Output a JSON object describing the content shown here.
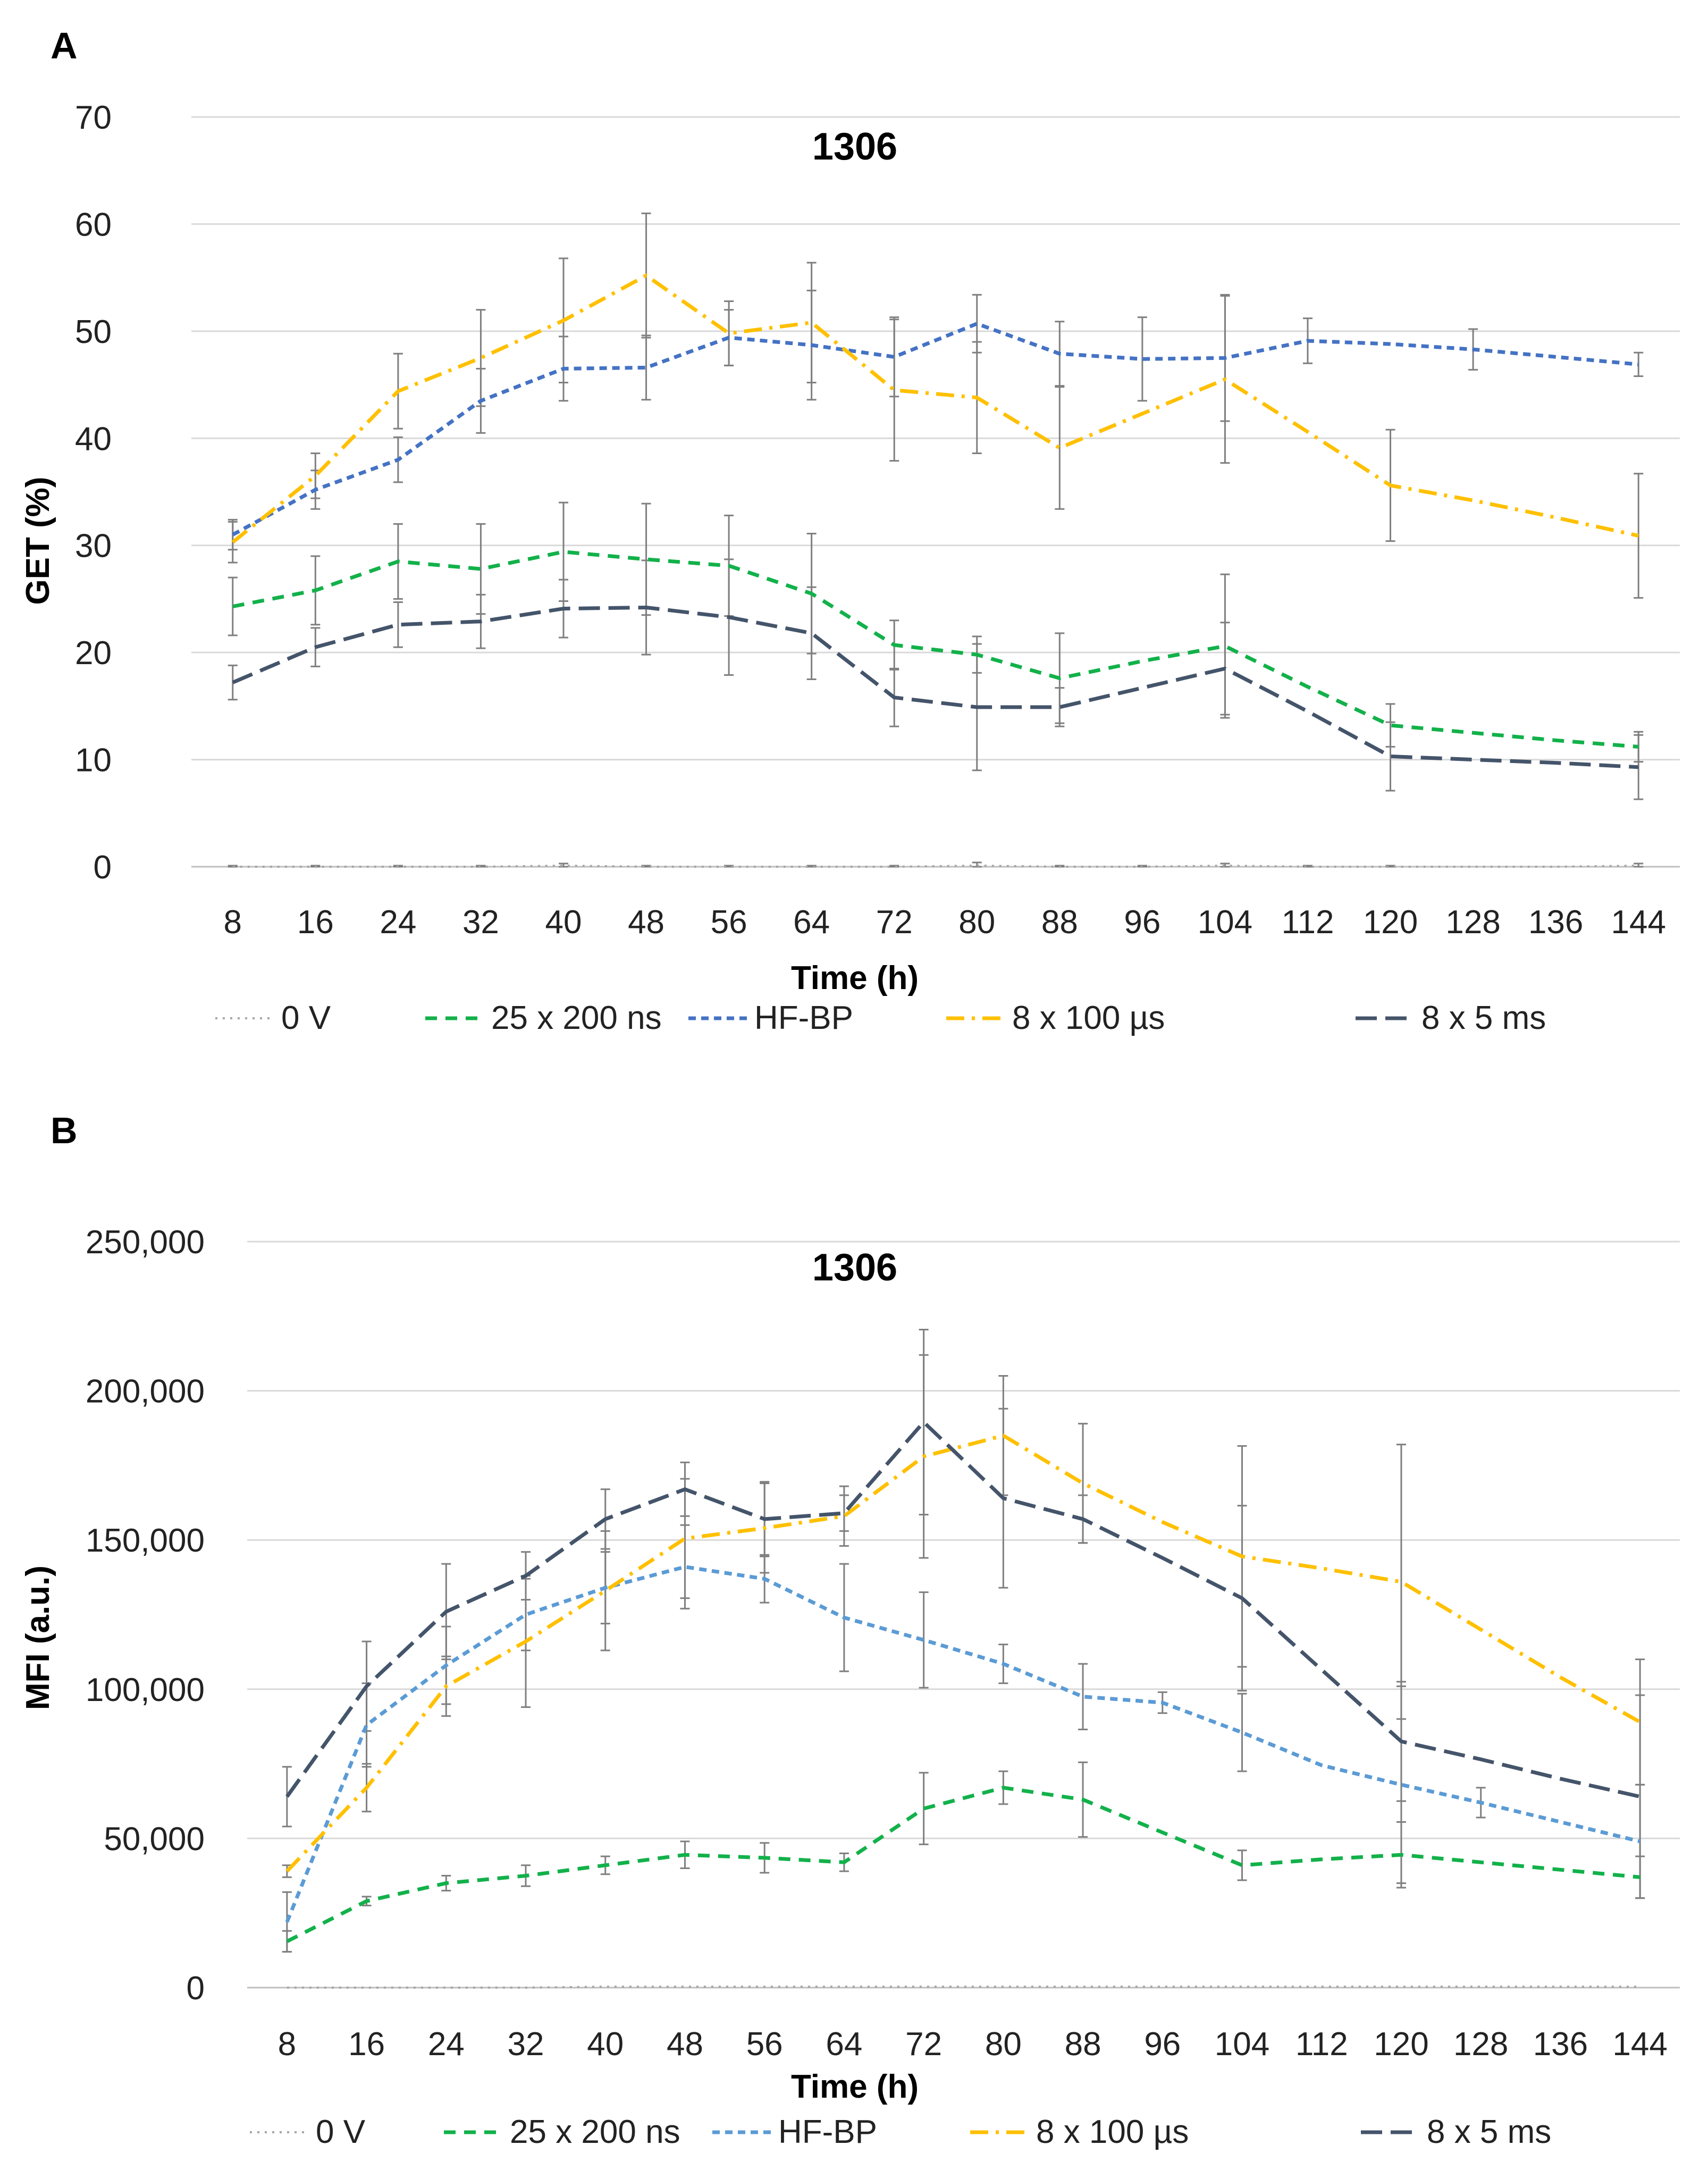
{
  "figure": {
    "panels": [
      "A",
      "B"
    ]
  },
  "series_styles": [
    {
      "name": "0 V",
      "color": "#a6a6a6",
      "dash": "dot"
    },
    {
      "name": "25 x 200 ns",
      "color": "#12b14a",
      "dash": "dash"
    },
    {
      "name": "HF-BP",
      "color": "#4472c4",
      "dash": "sysdash"
    },
    {
      "name": "8 x 100 µs",
      "color": "#ffc000",
      "dash": "dashdot"
    },
    {
      "name": "8 x 5 ms",
      "color": "#44546a",
      "dash": "longdash"
    }
  ],
  "chart_data": [
    {
      "panel": "A",
      "type": "line",
      "title": "1306",
      "xlabel": "Time (h)",
      "ylabel": "GET (%)",
      "ylim": [
        0,
        70
      ],
      "yticks": [
        0,
        10,
        20,
        30,
        40,
        50,
        60,
        70
      ],
      "ytick_labels": [
        "0",
        "10",
        "20",
        "30",
        "40",
        "50",
        "60",
        "70"
      ],
      "grid": true,
      "legend_position": "bottom",
      "categories": [
        "8",
        "16",
        "24",
        "32",
        "40",
        "48",
        "56",
        "64",
        "72",
        "80",
        "88",
        "96",
        "104",
        "112",
        "120",
        "128",
        "136",
        "144"
      ],
      "series": [
        {
          "name": "0 V",
          "color": "#a6a6a6",
          "values": [
            0,
            0,
            0,
            0,
            0.1,
            0,
            0,
            0,
            0,
            0.1,
            0,
            0,
            0.1,
            0,
            0,
            0,
            0,
            0.1
          ],
          "errors": [
            0.1,
            0.1,
            0.1,
            0.1,
            0.2,
            0.1,
            0.1,
            0.1,
            0.1,
            0.3,
            0.1,
            0.1,
            0.2,
            0.1,
            0.1,
            null,
            null,
            0.2
          ]
        },
        {
          "name": "25 x 200 ns",
          "color": "#12b14a",
          "values": [
            24.3,
            25.8,
            28.5,
            27.8,
            29.4,
            28.7,
            28.1,
            25.5,
            20.7,
            19.8,
            17.6,
            19.2,
            20.6,
            16.8,
            13.2,
            12.5,
            11.8,
            11.2
          ],
          "errors": [
            2.7,
            3.2,
            3.5,
            4.2,
            4.6,
            5.2,
            4.7,
            5.6,
            2.3,
            1.7,
            4.2,
            null,
            6.7,
            null,
            2.0,
            null,
            null,
            1.4
          ]
        },
        {
          "name": "HF-BP",
          "color": "#4472c4",
          "values": [
            31.0,
            35.2,
            38.0,
            43.5,
            46.5,
            46.6,
            49.4,
            48.7,
            47.6,
            50.7,
            47.9,
            47.4,
            47.5,
            49.1,
            48.8,
            48.3,
            47.6,
            46.9
          ],
          "errors": [
            1.4,
            1.8,
            2.1,
            3.0,
            3.0,
            3.0,
            2.6,
            5.1,
            3.7,
            2.7,
            3.0,
            3.9,
            5.9,
            2.1,
            null,
            1.9,
            null,
            1.1
          ]
        },
        {
          "name": "8 x 100 µs",
          "color": "#ffc000",
          "values": [
            30.3,
            36.5,
            44.4,
            47.5,
            51.0,
            55.2,
            49.8,
            50.8,
            44.5,
            43.8,
            39.1,
            42.3,
            45.5,
            40.6,
            35.6,
            34.2,
            32.6,
            30.9
          ],
          "errors": [
            1.9,
            2.1,
            3.5,
            4.5,
            5.8,
            5.8,
            3.0,
            5.6,
            6.6,
            5.2,
            5.7,
            null,
            7.8,
            null,
            5.2,
            null,
            null,
            5.8
          ]
        },
        {
          "name": "8 x 5 ms",
          "color": "#44546a",
          "values": [
            17.2,
            20.5,
            22.6,
            22.9,
            24.1,
            24.2,
            23.3,
            21.8,
            15.8,
            14.9,
            14.9,
            16.7,
            18.5,
            14.5,
            10.3,
            10.0,
            9.7,
            9.3
          ],
          "errors": [
            1.6,
            1.8,
            2.1,
            2.5,
            2.7,
            4.4,
            5.4,
            4.3,
            2.7,
            5.9,
            1.8,
            null,
            4.3,
            null,
            3.2,
            null,
            null,
            3.0
          ]
        }
      ]
    },
    {
      "panel": "B",
      "type": "line",
      "title": "1306",
      "xlabel": "Time (h)",
      "ylabel": "MFI (a.u.)",
      "ylim": [
        0,
        250000
      ],
      "yticks": [
        0,
        50000,
        100000,
        150000,
        200000,
        250000
      ],
      "ytick_labels": [
        "0",
        "50,000",
        "100,000",
        "150,000",
        "200,000",
        "250,000"
      ],
      "grid": true,
      "legend_position": "bottom",
      "categories": [
        "8",
        "16",
        "24",
        "32",
        "40",
        "48",
        "56",
        "64",
        "72",
        "80",
        "88",
        "96",
        "104",
        "112",
        "120",
        "128",
        "136",
        "144"
      ],
      "series": [
        {
          "name": "0 V",
          "color": "#a6a6a6",
          "values": [
            0,
            0,
            0,
            0,
            300,
            300,
            300,
            300,
            300,
            300,
            300,
            300,
            300,
            300,
            300,
            300,
            300,
            300
          ],
          "errors": [
            null,
            null,
            null,
            null,
            null,
            null,
            null,
            null,
            null,
            null,
            null,
            null,
            null,
            null,
            null,
            null,
            null,
            null
          ]
        },
        {
          "name": "25 x 200 ns",
          "color": "#12b14a",
          "values": [
            15500,
            29000,
            35000,
            37500,
            41000,
            44500,
            43500,
            42000,
            60000,
            67000,
            63000,
            52000,
            41000,
            43000,
            44500,
            42000,
            39500,
            37000
          ],
          "errors": [
            3500,
            1500,
            2500,
            3500,
            3000,
            4500,
            5000,
            3000,
            12000,
            5500,
            12500,
            null,
            5000,
            null,
            11000,
            null,
            null,
            7000
          ]
        },
        {
          "name": "HF-BP",
          "color": "#5b9bd5",
          "values": [
            22000,
            88000,
            108000,
            125000,
            134000,
            141000,
            137000,
            124000,
            116500,
            108500,
            97500,
            95500,
            85500,
            74500,
            68000,
            62000,
            55500,
            49000
          ],
          "errors": [
            10000,
            14000,
            13000,
            12000,
            12000,
            14000,
            8000,
            18000,
            16000,
            6500,
            11000,
            3500,
            13000,
            null,
            33000,
            5000,
            null,
            19000
          ]
        },
        {
          "name": "8 x 100 µs",
          "color": "#ffc000",
          "values": [
            39000,
            67000,
            101000,
            116000,
            133000,
            150500,
            154000,
            158000,
            178000,
            185000,
            169000,
            156000,
            144500,
            140500,
            136000,
            120000,
            104000,
            89000
          ],
          "errors": [
            2000,
            8000,
            10000,
            22000,
            20000,
            20000,
            15000,
            10000,
            34000,
            20000,
            20000,
            null,
            37000,
            null,
            46000,
            null,
            null,
            21000
          ]
        },
        {
          "name": "8 x 5 ms",
          "color": "#44546a",
          "values": [
            64000,
            101000,
            126000,
            138000,
            157000,
            167000,
            157000,
            159000,
            189500,
            164000,
            157000,
            144000,
            130500,
            106500,
            82500,
            76500,
            70000,
            64000
          ],
          "errors": [
            10000,
            15000,
            16000,
            8000,
            10000,
            9000,
            12500,
            6000,
            31000,
            30000,
            8000,
            null,
            31000,
            null,
            20000,
            null,
            null,
            34000
          ]
        }
      ]
    }
  ]
}
